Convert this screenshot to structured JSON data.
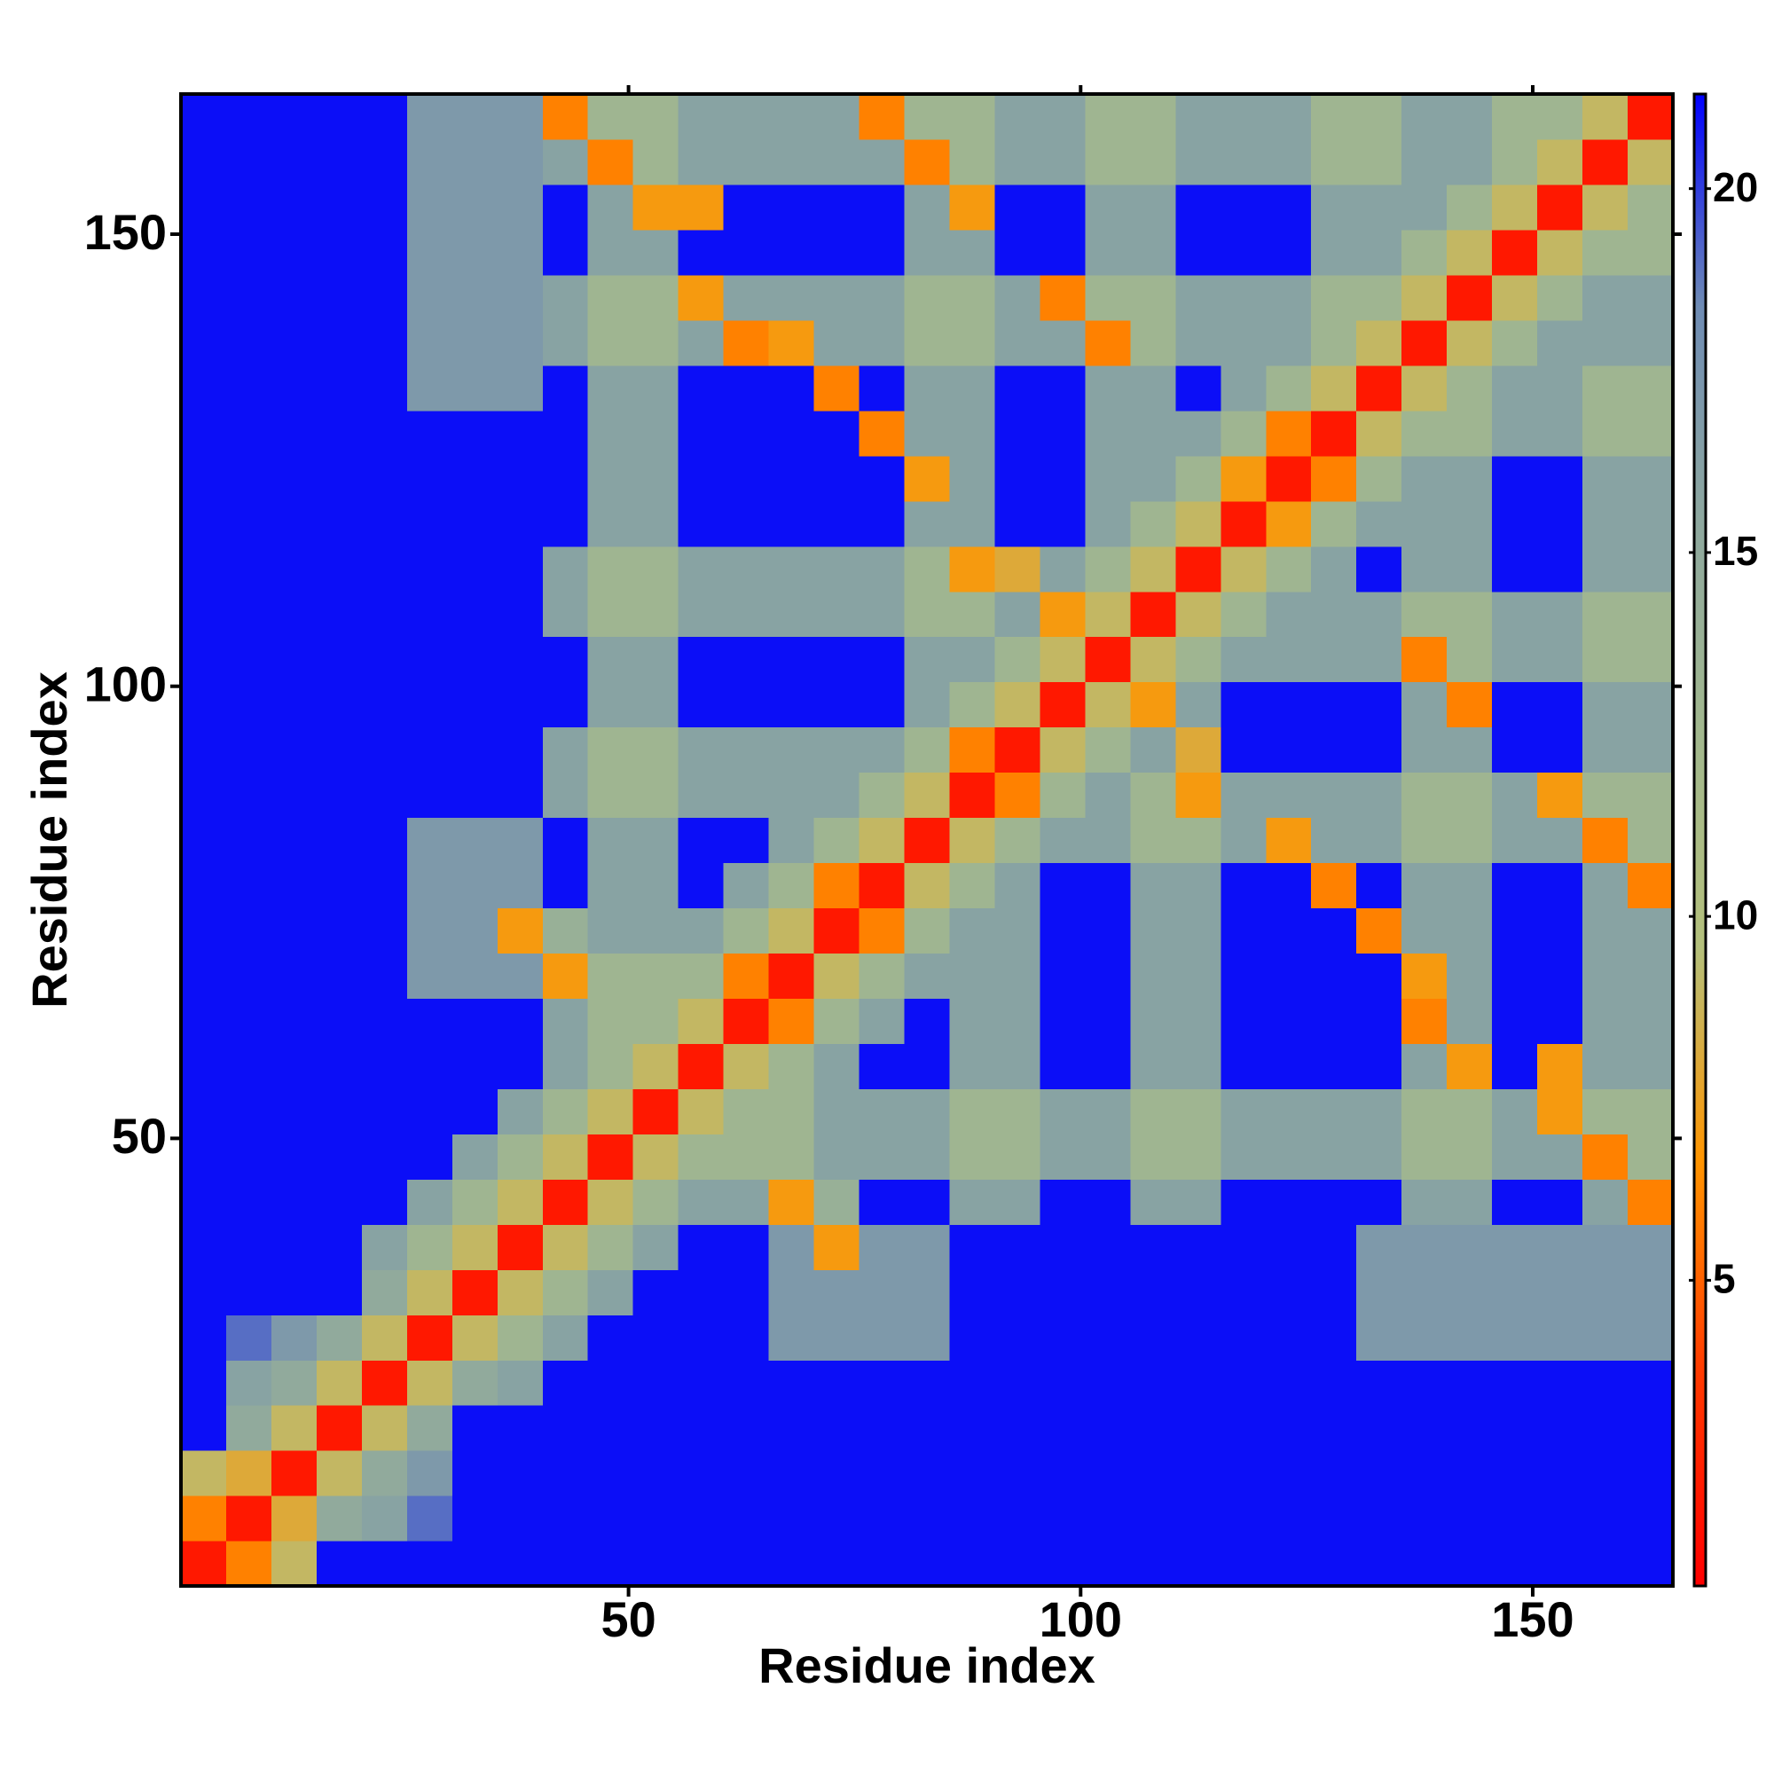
{
  "chart_data": {
    "type": "heatmap",
    "xlabel": "Residue index",
    "ylabel": "Residue index",
    "xlim": [
      0.5,
      165.5
    ],
    "ylim": [
      0.5,
      165.5
    ],
    "xticks": [
      50,
      100,
      150
    ],
    "yticks": [
      50,
      100,
      150
    ],
    "xbins": [
      0.5,
      5.5,
      10.5,
      15.5,
      20.5,
      25.5,
      30.5,
      35.5,
      40.5,
      45.5,
      50.5,
      55.5,
      60.5,
      65.5,
      70.5,
      75.5,
      80.5,
      85.5,
      90.5,
      95.5,
      100.5,
      105.5,
      110.5,
      115.5,
      120.5,
      125.5,
      130.5,
      135.5,
      140.5,
      145.5,
      150.5,
      155.5,
      160.5,
      165.5
    ],
    "ybins": [
      0.5,
      5.5,
      10.5,
      15.5,
      20.5,
      25.5,
      30.5,
      35.5,
      40.5,
      45.5,
      50.5,
      55.5,
      60.5,
      65.5,
      70.5,
      75.5,
      80.5,
      85.5,
      90.5,
      95.5,
      100.5,
      105.5,
      110.5,
      115.5,
      120.5,
      125.5,
      130.5,
      135.5,
      140.5,
      145.5,
      150.5,
      155.5,
      160.5,
      165.5
    ],
    "zlim": [
      0.8,
      21.3
    ],
    "zticks": [
      5,
      10,
      15,
      20
    ],
    "colors": [
      "#ff0000",
      "#ff3a00",
      "#ff9500",
      "#b4c07c",
      "#a2b88e",
      "#8ea89f",
      "#6f8cb4",
      "#0000ff"
    ],
    "z": [
      [
        2,
        6,
        9,
        21,
        21,
        21,
        21,
        21,
        21,
        21,
        21,
        21,
        21,
        21,
        21,
        21,
        21,
        21,
        21,
        21,
        21,
        21,
        21,
        21,
        21,
        21,
        21,
        21,
        21,
        21,
        21,
        21,
        21
      ],
      [
        6,
        2,
        8,
        15,
        16,
        19,
        21,
        21,
        21,
        21,
        21,
        21,
        21,
        21,
        21,
        21,
        21,
        21,
        21,
        21,
        21,
        21,
        21,
        21,
        21,
        21,
        21,
        21,
        21,
        21,
        21,
        21,
        21
      ],
      [
        9,
        8,
        2,
        9,
        15,
        17,
        21,
        21,
        21,
        21,
        21,
        21,
        21,
        21,
        21,
        21,
        21,
        21,
        21,
        21,
        21,
        21,
        21,
        21,
        21,
        21,
        21,
        21,
        21,
        21,
        21,
        21,
        21
      ],
      [
        21,
        15,
        9,
        2,
        9,
        15,
        21,
        21,
        21,
        21,
        21,
        21,
        21,
        21,
        21,
        21,
        21,
        21,
        21,
        21,
        21,
        21,
        21,
        21,
        21,
        21,
        21,
        21,
        21,
        21,
        21,
        21,
        21
      ],
      [
        21,
        16,
        15,
        9,
        2,
        9,
        15,
        16,
        21,
        21,
        21,
        21,
        21,
        21,
        21,
        21,
        21,
        21,
        21,
        21,
        21,
        21,
        21,
        21,
        21,
        21,
        21,
        21,
        21,
        21,
        21,
        21,
        21
      ],
      [
        21,
        19,
        17,
        15,
        9,
        2,
        9,
        13,
        16,
        21,
        21,
        21,
        21,
        17,
        17,
        17,
        17,
        21,
        21,
        21,
        21,
        21,
        21,
        21,
        21,
        21,
        17,
        17,
        17,
        17,
        17,
        17,
        17
      ],
      [
        21,
        21,
        21,
        21,
        15,
        9,
        2,
        9,
        13,
        16,
        21,
        21,
        21,
        17,
        17,
        17,
        17,
        21,
        21,
        21,
        21,
        21,
        21,
        21,
        21,
        21,
        17,
        17,
        17,
        17,
        17,
        17,
        17
      ],
      [
        21,
        21,
        21,
        21,
        16,
        13,
        9,
        2,
        9,
        13,
        16,
        21,
        21,
        17,
        7,
        17,
        17,
        21,
        21,
        21,
        21,
        21,
        21,
        21,
        21,
        21,
        17,
        17,
        17,
        17,
        17,
        17,
        17
      ],
      [
        21,
        21,
        21,
        21,
        21,
        16,
        13,
        9,
        2,
        9,
        13,
        16,
        16,
        7,
        14,
        21,
        21,
        16,
        16,
        21,
        21,
        16,
        16,
        21,
        21,
        21,
        21,
        16,
        16,
        21,
        21,
        16,
        6
      ],
      [
        21,
        21,
        21,
        21,
        21,
        21,
        16,
        13,
        9,
        2,
        9,
        13,
        13,
        13,
        16,
        16,
        16,
        13,
        13,
        16,
        16,
        13,
        13,
        16,
        16,
        16,
        16,
        13,
        13,
        16,
        16,
        6,
        13
      ],
      [
        21,
        21,
        21,
        21,
        21,
        21,
        21,
        16,
        13,
        9,
        2,
        9,
        13,
        13,
        16,
        16,
        16,
        13,
        13,
        16,
        16,
        13,
        13,
        16,
        16,
        16,
        16,
        13,
        13,
        16,
        7,
        13,
        13
      ],
      [
        21,
        21,
        21,
        21,
        21,
        21,
        21,
        21,
        16,
        13,
        9,
        2,
        9,
        13,
        16,
        21,
        21,
        16,
        16,
        21,
        21,
        16,
        16,
        21,
        21,
        21,
        21,
        16,
        7,
        21,
        7,
        16,
        16
      ],
      [
        21,
        21,
        21,
        21,
        21,
        21,
        21,
        21,
        16,
        13,
        13,
        9,
        2,
        6,
        13,
        16,
        21,
        16,
        16,
        21,
        21,
        16,
        16,
        21,
        21,
        21,
        21,
        6,
        16,
        21,
        21,
        16,
        16
      ],
      [
        21,
        21,
        21,
        21,
        21,
        17,
        17,
        17,
        7,
        13,
        13,
        13,
        6,
        2,
        9,
        13,
        16,
        16,
        16,
        21,
        21,
        16,
        16,
        21,
        21,
        21,
        21,
        7,
        16,
        21,
        21,
        16,
        16
      ],
      [
        21,
        21,
        21,
        21,
        21,
        17,
        17,
        7,
        14,
        16,
        16,
        16,
        13,
        9,
        2,
        6,
        13,
        16,
        16,
        21,
        21,
        16,
        16,
        21,
        21,
        21,
        6,
        16,
        16,
        21,
        21,
        16,
        16
      ],
      [
        21,
        21,
        21,
        21,
        21,
        17,
        17,
        17,
        21,
        16,
        16,
        21,
        16,
        13,
        6,
        2,
        9,
        13,
        16,
        21,
        21,
        16,
        16,
        21,
        21,
        6,
        21,
        16,
        16,
        21,
        21,
        16,
        6
      ],
      [
        21,
        21,
        21,
        21,
        21,
        17,
        17,
        17,
        21,
        16,
        16,
        21,
        21,
        16,
        13,
        9,
        2,
        9,
        13,
        16,
        16,
        13,
        13,
        16,
        7,
        16,
        16,
        13,
        13,
        16,
        16,
        6,
        13
      ],
      [
        21,
        21,
        21,
        21,
        21,
        21,
        21,
        21,
        16,
        13,
        13,
        16,
        16,
        16,
        16,
        13,
        9,
        2,
        6,
        13,
        16,
        13,
        7,
        16,
        16,
        16,
        16,
        13,
        13,
        16,
        7,
        13,
        13
      ],
      [
        21,
        21,
        21,
        21,
        21,
        21,
        21,
        21,
        16,
        13,
        13,
        16,
        16,
        16,
        16,
        16,
        13,
        6,
        2,
        9,
        13,
        16,
        8,
        21,
        21,
        21,
        21,
        16,
        16,
        21,
        21,
        16,
        16
      ],
      [
        21,
        21,
        21,
        21,
        21,
        21,
        21,
        21,
        21,
        16,
        16,
        21,
        21,
        21,
        21,
        21,
        16,
        13,
        9,
        2,
        9,
        7,
        16,
        21,
        21,
        21,
        21,
        16,
        6,
        21,
        21,
        16,
        16
      ],
      [
        21,
        21,
        21,
        21,
        21,
        21,
        21,
        21,
        21,
        16,
        16,
        21,
        21,
        21,
        21,
        21,
        16,
        16,
        13,
        9,
        2,
        9,
        13,
        16,
        16,
        16,
        16,
        6,
        13,
        16,
        16,
        13,
        13
      ],
      [
        21,
        21,
        21,
        21,
        21,
        21,
        21,
        21,
        16,
        13,
        13,
        16,
        16,
        16,
        16,
        16,
        13,
        13,
        16,
        7,
        9,
        2,
        9,
        13,
        16,
        16,
        16,
        13,
        13,
        16,
        16,
        13,
        13
      ],
      [
        21,
        21,
        21,
        21,
        21,
        21,
        21,
        21,
        16,
        13,
        13,
        16,
        16,
        16,
        16,
        16,
        13,
        7,
        8,
        16,
        13,
        9,
        2,
        9,
        13,
        16,
        21,
        16,
        16,
        21,
        21,
        16,
        16
      ],
      [
        21,
        21,
        21,
        21,
        21,
        21,
        21,
        21,
        21,
        16,
        16,
        21,
        21,
        21,
        21,
        21,
        16,
        16,
        21,
        21,
        16,
        13,
        9,
        2,
        7,
        13,
        16,
        16,
        16,
        21,
        21,
        16,
        16
      ],
      [
        21,
        21,
        21,
        21,
        21,
        21,
        21,
        21,
        21,
        16,
        16,
        21,
        21,
        21,
        21,
        21,
        7,
        16,
        21,
        21,
        16,
        16,
        13,
        7,
        2,
        6,
        13,
        16,
        16,
        21,
        21,
        16,
        16
      ],
      [
        21,
        21,
        21,
        21,
        21,
        21,
        21,
        21,
        21,
        16,
        16,
        21,
        21,
        21,
        21,
        6,
        16,
        16,
        21,
        21,
        16,
        16,
        16,
        13,
        6,
        2,
        9,
        13,
        13,
        16,
        16,
        13,
        13
      ],
      [
        21,
        21,
        21,
        21,
        21,
        17,
        17,
        17,
        21,
        16,
        16,
        21,
        21,
        21,
        6,
        21,
        16,
        16,
        21,
        21,
        16,
        16,
        21,
        16,
        13,
        9,
        2,
        9,
        13,
        16,
        16,
        13,
        13
      ],
      [
        21,
        21,
        21,
        21,
        21,
        17,
        17,
        17,
        16,
        13,
        13,
        16,
        6,
        7,
        16,
        16,
        13,
        13,
        16,
        16,
        6,
        13,
        16,
        16,
        16,
        13,
        9,
        2,
        9,
        13,
        16,
        16,
        16
      ],
      [
        21,
        21,
        21,
        21,
        21,
        17,
        17,
        17,
        16,
        13,
        13,
        7,
        16,
        16,
        16,
        16,
        13,
        13,
        16,
        6,
        13,
        13,
        16,
        16,
        16,
        13,
        13,
        9,
        2,
        9,
        13,
        16,
        16
      ],
      [
        21,
        21,
        21,
        21,
        21,
        17,
        17,
        17,
        21,
        16,
        16,
        21,
        21,
        21,
        21,
        21,
        16,
        16,
        21,
        21,
        16,
        16,
        21,
        21,
        21,
        16,
        16,
        13,
        9,
        2,
        9,
        13,
        13
      ],
      [
        21,
        21,
        21,
        21,
        21,
        17,
        17,
        17,
        21,
        16,
        7,
        7,
        21,
        21,
        21,
        21,
        16,
        7,
        21,
        21,
        16,
        16,
        21,
        21,
        21,
        16,
        16,
        16,
        13,
        9,
        2,
        9,
        13
      ],
      [
        21,
        21,
        21,
        21,
        21,
        17,
        17,
        17,
        16,
        6,
        13,
        16,
        16,
        16,
        16,
        16,
        6,
        13,
        16,
        16,
        13,
        13,
        16,
        16,
        16,
        13,
        13,
        16,
        16,
        13,
        9,
        2,
        9
      ],
      [
        21,
        21,
        21,
        21,
        21,
        17,
        17,
        17,
        6,
        13,
        13,
        16,
        16,
        16,
        16,
        6,
        13,
        13,
        16,
        16,
        13,
        13,
        16,
        16,
        16,
        13,
        13,
        16,
        16,
        13,
        13,
        9,
        2
      ]
    ]
  }
}
